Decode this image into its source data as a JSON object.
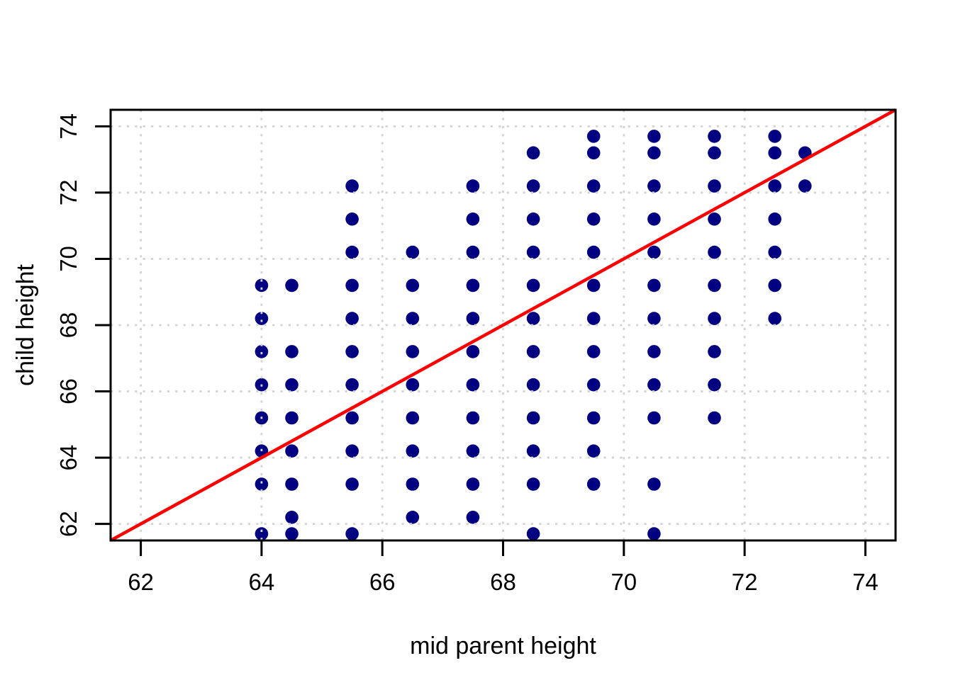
{
  "figure": {
    "background": "#FFFFFF",
    "box_color": "#000000",
    "grid_color": "#D3D3D3",
    "axis_text_color": "#000000"
  },
  "chart_data": {
    "type": "scatter",
    "title": "",
    "xlabel": "mid parent height",
    "ylabel": "child height",
    "xlim": [
      61.5,
      74.5
    ],
    "ylim": [
      61.5,
      74.5
    ],
    "x_ticks": [
      62,
      64,
      66,
      68,
      70,
      72,
      74
    ],
    "y_ticks": [
      62,
      64,
      66,
      68,
      70,
      72,
      74
    ],
    "grid": {
      "show": true,
      "style": "dotted",
      "at_x": [
        62,
        64,
        66,
        68,
        70,
        72,
        74
      ],
      "at_y": [
        62,
        64,
        66,
        68,
        70,
        72,
        74
      ]
    },
    "legend": "none",
    "points_color": "#000080",
    "marker": "filled-circle",
    "reference_line": {
      "name": "identity-line",
      "slope": 1,
      "intercept": 0,
      "color": "#FF0000"
    },
    "series": [
      {
        "name": "child height vs mid parent height",
        "points": [
          [
            64,
            61.7
          ],
          [
            64,
            63.2
          ],
          [
            64,
            64.2
          ],
          [
            64,
            65.2
          ],
          [
            64,
            66.2
          ],
          [
            64,
            67.2
          ],
          [
            64,
            68.2
          ],
          [
            64,
            69.2
          ],
          [
            64.5,
            61.7
          ],
          [
            64.5,
            62.2
          ],
          [
            64.5,
            63.2
          ],
          [
            64.5,
            64.2
          ],
          [
            64.5,
            65.2
          ],
          [
            64.5,
            66.2
          ],
          [
            64.5,
            67.2
          ],
          [
            64.5,
            69.2
          ],
          [
            65.5,
            61.7
          ],
          [
            65.5,
            63.2
          ],
          [
            65.5,
            64.2
          ],
          [
            65.5,
            65.2
          ],
          [
            65.5,
            66.2
          ],
          [
            65.5,
            67.2
          ],
          [
            65.5,
            68.2
          ],
          [
            65.5,
            69.2
          ],
          [
            65.5,
            70.2
          ],
          [
            65.5,
            71.2
          ],
          [
            65.5,
            72.2
          ],
          [
            66.5,
            62.2
          ],
          [
            66.5,
            63.2
          ],
          [
            66.5,
            64.2
          ],
          [
            66.5,
            65.2
          ],
          [
            66.5,
            66.2
          ],
          [
            66.5,
            67.2
          ],
          [
            66.5,
            68.2
          ],
          [
            66.5,
            69.2
          ],
          [
            66.5,
            70.2
          ],
          [
            67.5,
            62.2
          ],
          [
            67.5,
            63.2
          ],
          [
            67.5,
            64.2
          ],
          [
            67.5,
            65.2
          ],
          [
            67.5,
            66.2
          ],
          [
            67.5,
            67.2
          ],
          [
            67.5,
            68.2
          ],
          [
            67.5,
            69.2
          ],
          [
            67.5,
            70.2
          ],
          [
            67.5,
            71.2
          ],
          [
            67.5,
            72.2
          ],
          [
            68.5,
            61.7
          ],
          [
            68.5,
            63.2
          ],
          [
            68.5,
            64.2
          ],
          [
            68.5,
            65.2
          ],
          [
            68.5,
            66.2
          ],
          [
            68.5,
            67.2
          ],
          [
            68.5,
            68.2
          ],
          [
            68.5,
            69.2
          ],
          [
            68.5,
            70.2
          ],
          [
            68.5,
            71.2
          ],
          [
            68.5,
            72.2
          ],
          [
            68.5,
            73.2
          ],
          [
            69.5,
            63.2
          ],
          [
            69.5,
            64.2
          ],
          [
            69.5,
            65.2
          ],
          [
            69.5,
            66.2
          ],
          [
            69.5,
            67.2
          ],
          [
            69.5,
            68.2
          ],
          [
            69.5,
            69.2
          ],
          [
            69.5,
            70.2
          ],
          [
            69.5,
            71.2
          ],
          [
            69.5,
            72.2
          ],
          [
            69.5,
            73.2
          ],
          [
            69.5,
            73.7
          ],
          [
            70.5,
            61.7
          ],
          [
            70.5,
            63.2
          ],
          [
            70.5,
            65.2
          ],
          [
            70.5,
            66.2
          ],
          [
            70.5,
            67.2
          ],
          [
            70.5,
            68.2
          ],
          [
            70.5,
            69.2
          ],
          [
            70.5,
            70.2
          ],
          [
            70.5,
            71.2
          ],
          [
            70.5,
            72.2
          ],
          [
            70.5,
            73.2
          ],
          [
            70.5,
            73.7
          ],
          [
            71.5,
            65.2
          ],
          [
            71.5,
            66.2
          ],
          [
            71.5,
            67.2
          ],
          [
            71.5,
            68.2
          ],
          [
            71.5,
            69.2
          ],
          [
            71.5,
            70.2
          ],
          [
            71.5,
            71.2
          ],
          [
            71.5,
            72.2
          ],
          [
            71.5,
            73.2
          ],
          [
            71.5,
            73.7
          ],
          [
            72.5,
            68.2
          ],
          [
            72.5,
            69.2
          ],
          [
            72.5,
            70.2
          ],
          [
            72.5,
            71.2
          ],
          [
            72.5,
            72.2
          ],
          [
            72.5,
            73.2
          ],
          [
            72.5,
            73.7
          ],
          [
            73,
            72.2
          ],
          [
            73,
            73.2
          ]
        ]
      }
    ]
  }
}
